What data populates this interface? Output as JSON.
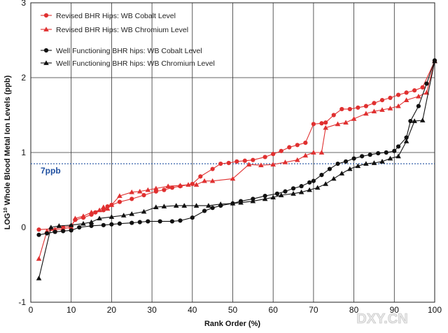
{
  "chart_data": {
    "type": "line",
    "xlabel": "Rank Order (%)",
    "ylabel_main": "LOG",
    "ylabel_sup": "10",
    "ylabel_rest": " Whole Blood Metal Ion Levels (ppb)",
    "xlim": [
      0,
      100
    ],
    "ylim": [
      -1,
      3
    ],
    "xticks": [
      "0",
      "10",
      "20",
      "30",
      "40",
      "50",
      "60",
      "70",
      "80",
      "90",
      "100"
    ],
    "yticks": [
      "-1",
      "0",
      "1",
      "2",
      "3"
    ],
    "grid": "vertical every 10, horizontal at 1 and 2",
    "legend_position": "top-left",
    "reference_line": {
      "y": 0.85,
      "label": "7ppb",
      "color": "#1f4fa0"
    },
    "watermark": "DXY.CN",
    "series": [
      {
        "name": "Revised BHR Hips: WB Cobalt Level",
        "color": "#e03030",
        "marker": "circle",
        "x": [
          2,
          5,
          8,
          10,
          11,
          13,
          15,
          16,
          18,
          19,
          20,
          22,
          25,
          28,
          31,
          33,
          35,
          37,
          40,
          42,
          45,
          47,
          49,
          51,
          53,
          55,
          58,
          60,
          62,
          64,
          66,
          68,
          70,
          72,
          73,
          75,
          77,
          79,
          81,
          83,
          85,
          87,
          89,
          91,
          93,
          95,
          97,
          100
        ],
        "y": [
          -0.03,
          -0.02,
          0.0,
          0.02,
          0.1,
          0.13,
          0.17,
          0.2,
          0.23,
          0.28,
          0.3,
          0.34,
          0.38,
          0.43,
          0.48,
          0.5,
          0.53,
          0.55,
          0.58,
          0.68,
          0.78,
          0.85,
          0.86,
          0.88,
          0.89,
          0.9,
          0.94,
          0.98,
          1.02,
          1.07,
          1.1,
          1.13,
          1.38,
          1.39,
          1.4,
          1.5,
          1.58,
          1.58,
          1.6,
          1.62,
          1.66,
          1.7,
          1.73,
          1.77,
          1.8,
          1.83,
          1.87,
          2.22
        ]
      },
      {
        "name": "Revised BHR Hips: WB Chromium Level",
        "color": "#e03030",
        "marker": "triangle",
        "x": [
          2,
          4,
          6,
          8,
          10,
          11,
          13,
          15,
          17,
          18,
          19,
          20,
          22,
          25,
          27,
          29,
          31,
          34,
          37,
          39,
          41,
          43,
          45,
          50,
          54,
          57,
          60,
          63,
          66,
          68,
          70,
          72,
          73,
          76,
          78,
          80,
          83,
          85,
          87,
          89,
          91,
          93,
          96,
          98,
          100
        ],
        "y": [
          -0.42,
          -0.05,
          -0.03,
          -0.02,
          0.0,
          0.12,
          0.15,
          0.2,
          0.23,
          0.27,
          0.25,
          0.3,
          0.42,
          0.47,
          0.48,
          0.5,
          0.52,
          0.55,
          0.56,
          0.57,
          0.57,
          0.62,
          0.62,
          0.65,
          0.84,
          0.83,
          0.84,
          0.87,
          0.9,
          0.96,
          1.0,
          1.0,
          1.33,
          1.38,
          1.4,
          1.45,
          1.52,
          1.55,
          1.57,
          1.59,
          1.62,
          1.7,
          1.75,
          1.8,
          2.22
        ]
      },
      {
        "name": "Well Functioning BHR hips: WB Cobalt Level",
        "color": "#111111",
        "marker": "circle",
        "x": [
          2,
          4,
          6,
          8,
          10,
          12,
          15,
          18,
          20,
          22,
          25,
          27,
          29,
          32,
          35,
          37,
          40,
          43,
          45,
          47,
          50,
          52,
          55,
          58,
          61,
          63,
          65,
          67,
          69,
          70,
          72,
          74,
          76,
          78,
          80,
          82,
          84,
          86,
          88,
          90,
          91,
          93,
          94,
          96,
          98,
          100
        ],
        "y": [
          -0.1,
          -0.08,
          -0.06,
          -0.05,
          -0.04,
          0.0,
          0.02,
          0.03,
          0.04,
          0.05,
          0.06,
          0.07,
          0.08,
          0.08,
          0.08,
          0.09,
          0.13,
          0.22,
          0.26,
          0.29,
          0.32,
          0.35,
          0.38,
          0.42,
          0.45,
          0.48,
          0.52,
          0.55,
          0.6,
          0.62,
          0.7,
          0.78,
          0.85,
          0.88,
          0.92,
          0.95,
          0.97,
          0.99,
          1.0,
          1.02,
          1.08,
          1.2,
          1.42,
          1.62,
          1.92,
          2.23
        ]
      },
      {
        "name": "Well Functioning BHR hips: WB Chromium Level",
        "color": "#111111",
        "marker": "triangle",
        "x": [
          2,
          5,
          7,
          10,
          13,
          15,
          17,
          20,
          23,
          25,
          28,
          31,
          33,
          36,
          38,
          41,
          44,
          47,
          50,
          52,
          55,
          58,
          60,
          62,
          65,
          67,
          69,
          71,
          73,
          75,
          77,
          79,
          81,
          83,
          85,
          87,
          89,
          91,
          93,
          95,
          97,
          100
        ],
        "y": [
          -0.68,
          0.0,
          0.02,
          0.03,
          0.05,
          0.07,
          0.12,
          0.14,
          0.16,
          0.18,
          0.21,
          0.27,
          0.28,
          0.29,
          0.29,
          0.29,
          0.29,
          0.31,
          0.32,
          0.33,
          0.35,
          0.38,
          0.4,
          0.43,
          0.45,
          0.47,
          0.5,
          0.53,
          0.58,
          0.65,
          0.72,
          0.78,
          0.82,
          0.85,
          0.86,
          0.88,
          0.92,
          0.95,
          1.15,
          1.42,
          1.43,
          2.22
        ]
      }
    ]
  }
}
